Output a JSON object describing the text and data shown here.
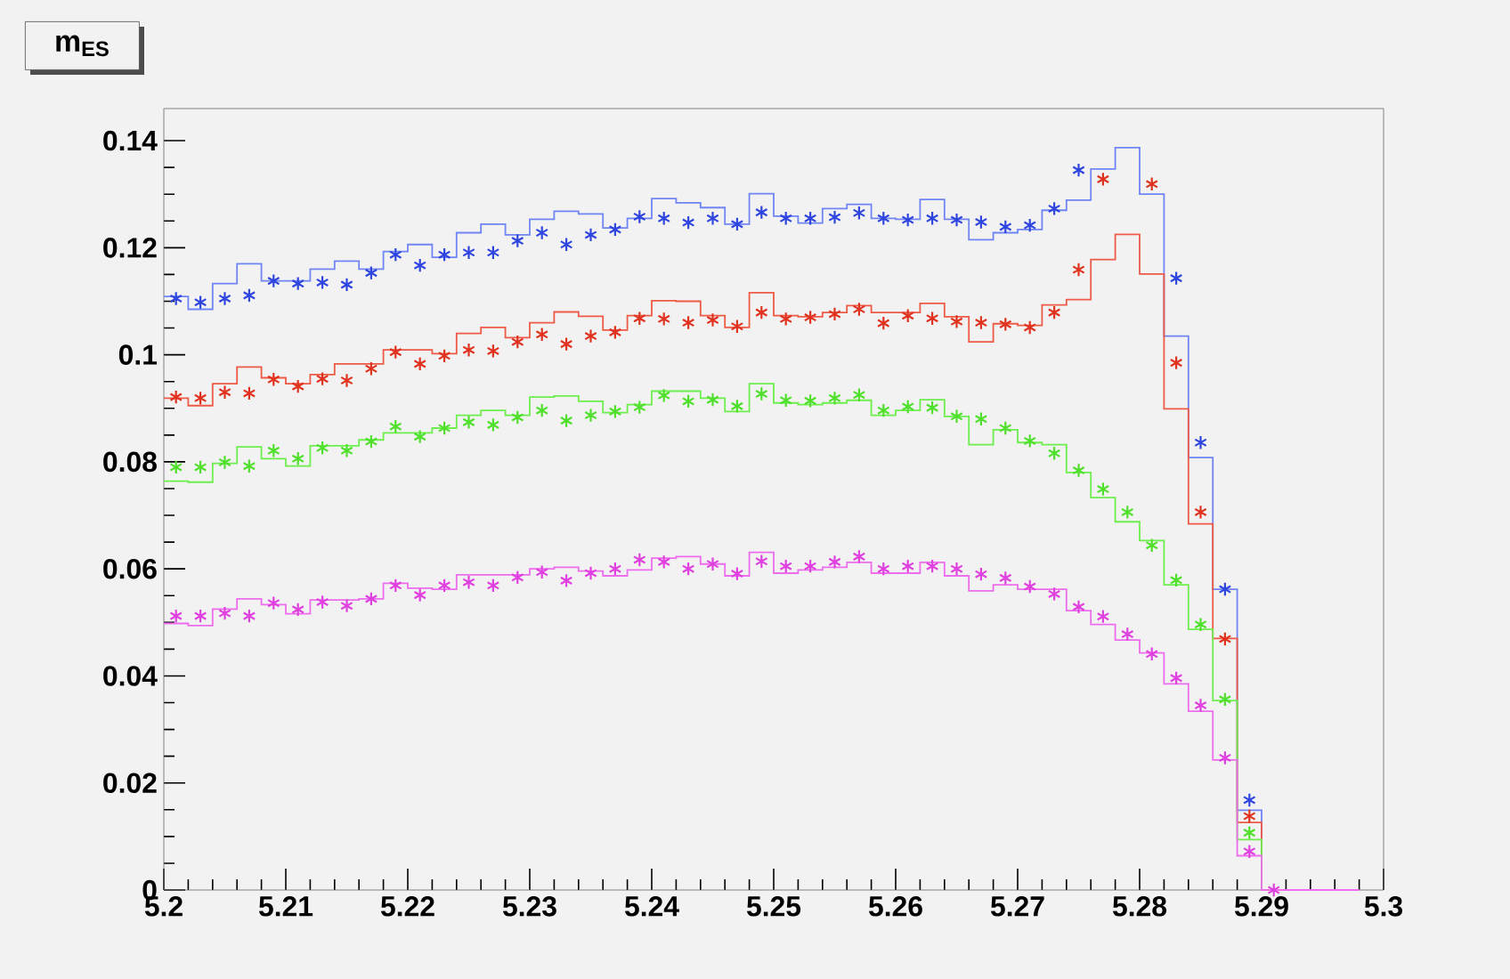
{
  "chart_data": {
    "type": "step",
    "title": "m$_{ES}$",
    "xlim": [
      5.2,
      5.3
    ],
    "ylim": [
      0,
      0.146
    ],
    "xticks": [
      5.2,
      5.21,
      5.22,
      5.23,
      5.24,
      5.25,
      5.26,
      5.27,
      5.28,
      5.29,
      5.3
    ],
    "yticks": [
      0,
      0.02,
      0.04,
      0.06,
      0.08,
      0.1,
      0.12,
      0.14
    ],
    "marker": "cross",
    "series": [
      {
        "marker": "none",
        "color": "#7085f5",
        "x": [
          5.2,
          5.202,
          5.204,
          5.206,
          5.208,
          5.21,
          5.212,
          5.214,
          5.216,
          5.218,
          5.22,
          5.222,
          5.224,
          5.226,
          5.228,
          5.23,
          5.232,
          5.234,
          5.236,
          5.238,
          5.24,
          5.242,
          5.244,
          5.246,
          5.248,
          5.25,
          5.252,
          5.254,
          5.256,
          5.258,
          5.26,
          5.262,
          5.264,
          5.266,
          5.268,
          5.27,
          5.272,
          5.274,
          5.276,
          5.278,
          5.28,
          5.282,
          5.284,
          5.286,
          5.288,
          5.29,
          5.292
        ],
        "values": [
          0.1109,
          0.1085,
          0.1133,
          0.117,
          0.1138,
          0.1138,
          0.116,
          0.1175,
          0.116,
          0.1193,
          0.1206,
          0.1182,
          0.1228,
          0.1244,
          0.1224,
          0.1253,
          0.1268,
          0.1263,
          0.1237,
          0.1255,
          0.1292,
          0.1284,
          0.1275,
          0.1244,
          0.1301,
          0.1259,
          0.1246,
          0.1273,
          0.1281,
          0.1255,
          0.1253,
          0.129,
          0.1253,
          0.1215,
          0.1228,
          0.1234,
          0.127,
          0.1289,
          0.1347,
          0.1387,
          0.13,
          0.1035,
          0.0808,
          0.0562,
          0.0149,
          0,
          0
        ]
      },
      {
        "marker": "none",
        "color": "#ee5a45",
        "x": [
          5.2,
          5.202,
          5.204,
          5.206,
          5.208,
          5.21,
          5.212,
          5.214,
          5.216,
          5.218,
          5.22,
          5.222,
          5.224,
          5.226,
          5.228,
          5.23,
          5.232,
          5.234,
          5.236,
          5.238,
          5.24,
          5.242,
          5.244,
          5.246,
          5.248,
          5.25,
          5.252,
          5.254,
          5.256,
          5.258,
          5.26,
          5.262,
          5.264,
          5.266,
          5.268,
          5.27,
          5.272,
          5.274,
          5.276,
          5.278,
          5.28,
          5.282,
          5.284,
          5.286,
          5.288,
          5.29,
          5.292
        ],
        "values": [
          0.0919,
          0.0905,
          0.0946,
          0.0977,
          0.0957,
          0.0946,
          0.0963,
          0.0983,
          0.0983,
          0.1009,
          0.1009,
          0.1002,
          0.104,
          0.1051,
          0.1032,
          0.106,
          0.108,
          0.1072,
          0.1046,
          0.1073,
          0.1101,
          0.11,
          0.1073,
          0.1051,
          0.1116,
          0.1073,
          0.1071,
          0.1079,
          0.1092,
          0.1079,
          0.1079,
          0.1096,
          0.1071,
          0.1024,
          0.1058,
          0.1055,
          0.1093,
          0.1103,
          0.1178,
          0.1225,
          0.1151,
          0.0899,
          0.0684,
          0.047,
          0.0126,
          0,
          0
        ]
      },
      {
        "marker": "none",
        "color": "#6cee4c",
        "x": [
          5.2,
          5.202,
          5.204,
          5.206,
          5.208,
          5.21,
          5.212,
          5.214,
          5.216,
          5.218,
          5.22,
          5.222,
          5.224,
          5.226,
          5.228,
          5.23,
          5.232,
          5.234,
          5.236,
          5.238,
          5.24,
          5.242,
          5.244,
          5.246,
          5.248,
          5.25,
          5.252,
          5.254,
          5.256,
          5.258,
          5.26,
          5.262,
          5.264,
          5.266,
          5.268,
          5.27,
          5.272,
          5.274,
          5.276,
          5.278,
          5.28,
          5.282,
          5.284,
          5.286,
          5.288,
          5.29,
          5.292
        ],
        "values": [
          0.0764,
          0.0762,
          0.0797,
          0.0828,
          0.0806,
          0.0792,
          0.083,
          0.083,
          0.0841,
          0.0854,
          0.0854,
          0.0863,
          0.0887,
          0.0896,
          0.0887,
          0.0921,
          0.0923,
          0.0913,
          0.0892,
          0.0907,
          0.0932,
          0.0932,
          0.0919,
          0.0894,
          0.0946,
          0.091,
          0.0907,
          0.091,
          0.0915,
          0.0887,
          0.0896,
          0.0916,
          0.0885,
          0.0832,
          0.086,
          0.0836,
          0.0832,
          0.078,
          0.0733,
          0.0688,
          0.0653,
          0.057,
          0.0487,
          0.0354,
          0.0094,
          0,
          0
        ]
      },
      {
        "marker": "none",
        "color": "#ee6cee",
        "x": [
          5.2,
          5.202,
          5.204,
          5.206,
          5.208,
          5.21,
          5.212,
          5.214,
          5.216,
          5.218,
          5.22,
          5.222,
          5.224,
          5.226,
          5.228,
          5.23,
          5.232,
          5.234,
          5.236,
          5.238,
          5.24,
          5.242,
          5.244,
          5.246,
          5.248,
          5.25,
          5.252,
          5.254,
          5.256,
          5.258,
          5.26,
          5.262,
          5.264,
          5.266,
          5.268,
          5.27,
          5.272,
          5.274,
          5.276,
          5.278,
          5.28,
          5.282,
          5.284,
          5.286,
          5.288,
          5.29,
          5.292,
          5.294,
          5.296,
          5.298
        ],
        "values": [
          0.0498,
          0.0494,
          0.0525,
          0.0544,
          0.0533,
          0.0516,
          0.0542,
          0.0542,
          0.0544,
          0.0573,
          0.0564,
          0.0562,
          0.0589,
          0.0589,
          0.0589,
          0.06,
          0.0603,
          0.0596,
          0.0587,
          0.0598,
          0.062,
          0.0623,
          0.0609,
          0.0587,
          0.0631,
          0.0592,
          0.0598,
          0.0603,
          0.0612,
          0.0592,
          0.0592,
          0.0612,
          0.0587,
          0.0559,
          0.057,
          0.0562,
          0.0562,
          0.0522,
          0.0496,
          0.0467,
          0.0443,
          0.0385,
          0.0334,
          0.0243,
          0.0064,
          0,
          0,
          0,
          0,
          0
        ]
      },
      {
        "type": "scatter",
        "color": "#2f45e0",
        "x": [
          5.201,
          5.203,
          5.205,
          5.207,
          5.209,
          5.211,
          5.213,
          5.215,
          5.217,
          5.219,
          5.221,
          5.223,
          5.225,
          5.227,
          5.229,
          5.231,
          5.233,
          5.235,
          5.237,
          5.239,
          5.241,
          5.243,
          5.245,
          5.247,
          5.249,
          5.251,
          5.253,
          5.255,
          5.257,
          5.259,
          5.261,
          5.263,
          5.265,
          5.267,
          5.269,
          5.271,
          5.273,
          5.275,
          5.277,
          5.279,
          5.281,
          5.283,
          5.285,
          5.287,
          5.289
        ],
        "values": [
          0.1105,
          0.1098,
          0.1105,
          0.1111,
          0.1138,
          0.1133,
          0.1135,
          0.1131,
          0.1153,
          0.1187,
          0.1167,
          0.1187,
          0.1191,
          0.1191,
          0.1213,
          0.1228,
          0.1206,
          0.1224,
          0.1234,
          0.1258,
          0.1255,
          0.1247,
          0.1255,
          0.1244,
          0.1266,
          0.1255,
          0.1255,
          0.1257,
          0.1265,
          0.1255,
          0.1252,
          0.1255,
          0.1252,
          0.1248,
          0.1239,
          0.1242,
          0.1273,
          0.1345,
          null,
          null,
          null,
          0.1143,
          0.0836,
          0.0562,
          0.0168
        ]
      },
      {
        "type": "scatter",
        "color": "#e0321e",
        "x": [
          5.201,
          5.203,
          5.205,
          5.207,
          5.209,
          5.211,
          5.213,
          5.215,
          5.217,
          5.219,
          5.221,
          5.223,
          5.225,
          5.227,
          5.229,
          5.231,
          5.233,
          5.235,
          5.237,
          5.239,
          5.241,
          5.243,
          5.245,
          5.247,
          5.249,
          5.251,
          5.253,
          5.255,
          5.257,
          5.259,
          5.261,
          5.263,
          5.265,
          5.267,
          5.269,
          5.271,
          5.273,
          5.275,
          5.277,
          5.279,
          5.281,
          5.283,
          5.285,
          5.287,
          5.289
        ],
        "values": [
          0.0921,
          0.0919,
          0.093,
          0.0928,
          0.0954,
          0.0941,
          0.0955,
          0.0952,
          0.0974,
          0.1005,
          0.0983,
          0.0998,
          0.1009,
          0.1007,
          0.1024,
          0.1038,
          0.102,
          0.1035,
          0.1042,
          0.1068,
          0.1067,
          0.106,
          0.1065,
          0.1053,
          0.1079,
          0.1067,
          0.107,
          0.1076,
          0.1085,
          0.1059,
          0.1073,
          0.1068,
          0.1062,
          0.106,
          0.1057,
          0.1051,
          0.1079,
          0.1159,
          0.1328,
          null,
          0.1319,
          0.0985,
          0.0706,
          0.0469,
          0.0138
        ]
      },
      {
        "type": "scatter",
        "color": "#4ee02a",
        "x": [
          5.201,
          5.203,
          5.205,
          5.207,
          5.209,
          5.211,
          5.213,
          5.215,
          5.217,
          5.219,
          5.221,
          5.223,
          5.225,
          5.227,
          5.229,
          5.231,
          5.233,
          5.235,
          5.237,
          5.239,
          5.241,
          5.243,
          5.245,
          5.247,
          5.249,
          5.251,
          5.253,
          5.255,
          5.257,
          5.259,
          5.261,
          5.263,
          5.265,
          5.267,
          5.269,
          5.271,
          5.273,
          5.275,
          5.277,
          5.279,
          5.281,
          5.283,
          5.285,
          5.287,
          5.289
        ],
        "values": [
          0.079,
          0.079,
          0.0799,
          0.0792,
          0.0821,
          0.0806,
          0.0826,
          0.0821,
          0.0838,
          0.0866,
          0.0847,
          0.0863,
          0.0874,
          0.0869,
          0.0883,
          0.0896,
          0.0877,
          0.0887,
          0.0894,
          0.0902,
          0.0924,
          0.0913,
          0.0916,
          0.0904,
          0.0927,
          0.0915,
          0.0914,
          0.0919,
          0.0925,
          0.0896,
          0.0903,
          0.0901,
          0.0885,
          0.088,
          0.0863,
          0.0839,
          0.0816,
          0.0784,
          0.0749,
          0.0706,
          0.0644,
          0.0579,
          0.0496,
          0.0356,
          0.0107
        ]
      },
      {
        "type": "scatter",
        "color": "#e040e0",
        "x": [
          5.201,
          5.203,
          5.205,
          5.207,
          5.209,
          5.211,
          5.213,
          5.215,
          5.217,
          5.219,
          5.221,
          5.223,
          5.225,
          5.227,
          5.229,
          5.231,
          5.233,
          5.235,
          5.237,
          5.239,
          5.241,
          5.243,
          5.245,
          5.247,
          5.249,
          5.251,
          5.253,
          5.255,
          5.257,
          5.259,
          5.261,
          5.263,
          5.265,
          5.267,
          5.269,
          5.271,
          5.273,
          5.275,
          5.277,
          5.279,
          5.281,
          5.283,
          5.285,
          5.287,
          5.289,
          5.291
        ],
        "values": [
          0.0512,
          0.0512,
          0.0517,
          0.0512,
          0.0536,
          0.0524,
          0.0538,
          0.0531,
          0.0544,
          0.0569,
          0.0551,
          0.0569,
          0.0575,
          0.0569,
          0.0584,
          0.0594,
          0.0578,
          0.0592,
          0.06,
          0.0617,
          0.0613,
          0.06,
          0.0609,
          0.0591,
          0.0614,
          0.0605,
          0.0605,
          0.0613,
          0.0623,
          0.06,
          0.0605,
          0.0605,
          0.06,
          0.059,
          0.0583,
          0.0567,
          0.0553,
          0.0529,
          0.0511,
          0.0478,
          0.0441,
          0.0396,
          0.0345,
          0.0247,
          0.0072,
          0
        ]
      }
    ]
  }
}
